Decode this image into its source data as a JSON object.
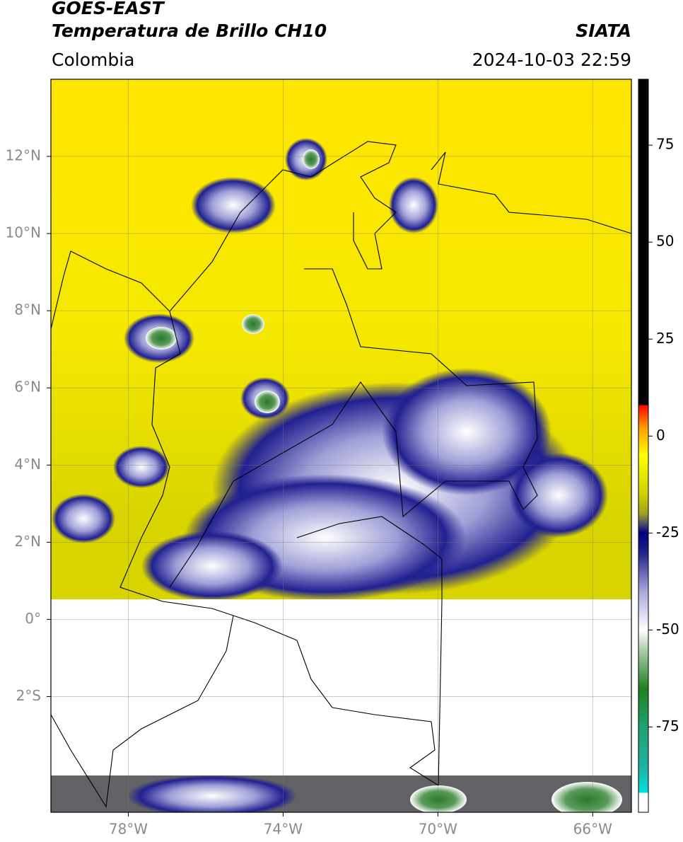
{
  "header": {
    "title": "GOES-EAST",
    "subtitle": "Temperatura de Brillo CH10",
    "source": "SIATA",
    "region": "Colombia",
    "timestamp": "2024-10-03 22:59"
  },
  "map": {
    "xlim": [
      -80,
      -65
    ],
    "ylim": [
      -5,
      14
    ],
    "xticks": [
      {
        "value": -78,
        "label": "78°W"
      },
      {
        "value": -74,
        "label": "74°W"
      },
      {
        "value": -70,
        "label": "70°W"
      },
      {
        "value": -66,
        "label": "66°W"
      }
    ],
    "yticks": [
      {
        "value": 12,
        "label": "12°N"
      },
      {
        "value": 10,
        "label": "10°N"
      },
      {
        "value": 8,
        "label": "8°N"
      },
      {
        "value": 6,
        "label": "6°N"
      },
      {
        "value": 4,
        "label": "4°N"
      },
      {
        "value": 2,
        "label": "2°N"
      },
      {
        "value": 0,
        "label": "0°"
      },
      {
        "value": -2,
        "label": "2°S"
      }
    ],
    "grid": true
  },
  "colorbar": {
    "lim": [
      -97,
      92
    ],
    "ticks": [
      75,
      50,
      25,
      0,
      -25,
      -50,
      -75
    ],
    "colormap": [
      {
        "value": -97,
        "color": "#ffffff"
      },
      {
        "value": -92,
        "color": "#ffffff"
      },
      {
        "value": -92,
        "color": "#00e0e0"
      },
      {
        "value": -85,
        "color": "#20b0a0"
      },
      {
        "value": -75,
        "color": "#20a070"
      },
      {
        "value": -65,
        "color": "#208020"
      },
      {
        "value": -55,
        "color": "#b0d0b0"
      },
      {
        "value": -50,
        "color": "#ffffff"
      },
      {
        "value": -40,
        "color": "#a8a8dc"
      },
      {
        "value": -30,
        "color": "#202088"
      },
      {
        "value": -25,
        "color": "#000080"
      },
      {
        "value": -22,
        "color": "#606060"
      },
      {
        "value": -20,
        "color": "#a0a020"
      },
      {
        "value": -15,
        "color": "#d0d000"
      },
      {
        "value": -5,
        "color": "#ffff00"
      },
      {
        "value": 2,
        "color": "#ffa000"
      },
      {
        "value": 8,
        "color": "#ff0000"
      },
      {
        "value": 8,
        "color": "#000000"
      },
      {
        "value": 92,
        "color": "#000000"
      }
    ]
  }
}
